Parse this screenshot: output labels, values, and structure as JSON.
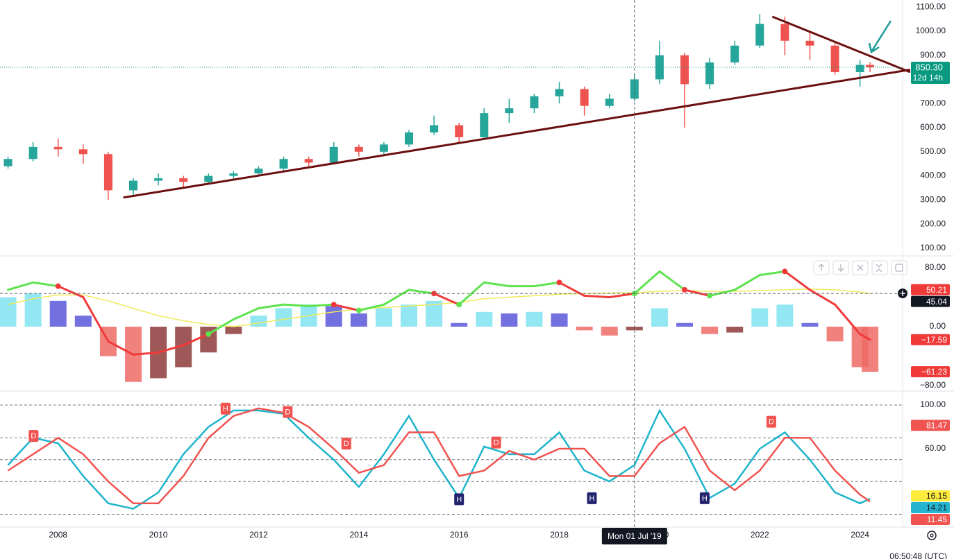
{
  "chart_data": [
    {
      "type": "candlestick",
      "x": [
        2007.0,
        2007.5,
        2008.0,
        2008.5,
        2009.0,
        2009.5,
        2010.0,
        2010.5,
        2011.0,
        2011.5,
        2012.0,
        2012.5,
        2013.0,
        2013.5,
        2014.0,
        2014.5,
        2015.0,
        2015.5,
        2016.0,
        2016.5,
        2017.0,
        2017.5,
        2018.0,
        2018.5,
        2019.0,
        2019.5,
        2020.0,
        2020.5,
        2021.0,
        2021.5,
        2022.0,
        2022.5,
        2023.0,
        2023.5,
        2024.0,
        2024.2
      ],
      "open": [
        440,
        470,
        520,
        510,
        490,
        340,
        380,
        390,
        375,
        400,
        410,
        430,
        470,
        455,
        520,
        500,
        530,
        580,
        610,
        560,
        660,
        680,
        730,
        760,
        690,
        720,
        800,
        900,
        780,
        870,
        940,
        1030,
        960,
        940,
        830,
        860
      ],
      "high": [
        480,
        540,
        555,
        530,
        500,
        390,
        410,
        400,
        410,
        420,
        440,
        480,
        480,
        540,
        530,
        540,
        590,
        650,
        620,
        680,
        720,
        740,
        790,
        770,
        740,
        820,
        960,
        910,
        890,
        960,
        1070,
        1060,
        1000,
        950,
        880,
        870
      ],
      "low": [
        430,
        460,
        480,
        450,
        300,
        320,
        360,
        350,
        370,
        380,
        400,
        420,
        440,
        450,
        480,
        490,
        520,
        570,
        540,
        550,
        620,
        660,
        700,
        650,
        680,
        710,
        780,
        600,
        760,
        860,
        930,
        900,
        880,
        820,
        770,
        830
      ],
      "close": [
        470,
        520,
        510,
        490,
        340,
        380,
        390,
        375,
        400,
        410,
        430,
        470,
        455,
        520,
        500,
        530,
        580,
        610,
        560,
        660,
        680,
        730,
        760,
        690,
        720,
        800,
        900,
        780,
        870,
        940,
        1030,
        960,
        940,
        830,
        860,
        850
      ],
      "up_color": "#26a69a",
      "down_color": "#ef5350",
      "xlim": [
        2006.84,
        2024.85
      ],
      "ylim": [
        71,
        1129
      ],
      "yticks": [
        {
          "value": 100,
          "label": "100.00"
        },
        {
          "value": 200,
          "label": "200.00"
        },
        {
          "value": 300,
          "label": "300.00"
        },
        {
          "value": 400,
          "label": "400.00"
        },
        {
          "value": 500,
          "label": "500.00"
        },
        {
          "value": 600,
          "label": "600.00"
        },
        {
          "value": 700,
          "label": "700.00"
        },
        {
          "value": 900,
          "label": "900.00"
        },
        {
          "value": 1000,
          "label": "1000.00"
        },
        {
          "value": 1100,
          "label": "1100.00"
        }
      ],
      "last_price": {
        "value": 850.3,
        "label": "850.30",
        "countdown": "12d 14h",
        "color": "#089981"
      },
      "trendline_color": "#6b0f0f",
      "trendlines": [
        {
          "x": [
            2009.3,
            2025.0
          ],
          "y": [
            310,
            840
          ]
        },
        {
          "x": [
            2022.25,
            2025.0
          ],
          "y": [
            1060,
            830
          ]
        }
      ]
    },
    {
      "type": "oscillator",
      "x": [
        2007.0,
        2007.5,
        2008.0,
        2008.5,
        2009.0,
        2009.5,
        2010.0,
        2010.5,
        2011.0,
        2011.5,
        2012.0,
        2012.5,
        2013.0,
        2013.5,
        2014.0,
        2014.5,
        2015.0,
        2015.5,
        2016.0,
        2016.5,
        2017.0,
        2017.5,
        2018.0,
        2018.5,
        2019.0,
        2019.5,
        2020.0,
        2020.5,
        2021.0,
        2021.5,
        2022.0,
        2022.5,
        2023.0,
        2023.5,
        2024.0,
        2024.2
      ],
      "xlim": [
        2006.84,
        2024.85
      ],
      "ylim": [
        -86.6,
        95.1
      ],
      "yticks": [
        {
          "value": 80,
          "label": "80.00"
        },
        {
          "value": 0,
          "label": "0.00"
        },
        {
          "value": -80,
          "label": "−80.00"
        }
      ],
      "histogram": [
        40,
        45,
        35,
        15,
        -40,
        -75,
        -70,
        -55,
        -35,
        -10,
        15,
        25,
        30,
        28,
        18,
        25,
        30,
        35,
        5,
        20,
        18,
        20,
        18,
        -5,
        -12,
        -5,
        25,
        5,
        -10,
        -8,
        25,
        30,
        5,
        -20,
        -55,
        -61.23
      ],
      "line": [
        50,
        60,
        55,
        40,
        -20,
        -38,
        -35,
        -25,
        -10,
        10,
        25,
        30,
        28,
        30,
        22,
        30,
        50,
        45,
        30,
        60,
        55,
        55,
        60,
        42,
        40,
        45,
        75,
        50,
        42,
        50,
        70,
        75,
        50,
        30,
        -10,
        -17.59
      ],
      "signal": [
        30,
        38,
        43,
        43,
        35,
        25,
        15,
        8,
        3,
        0,
        5,
        10,
        15,
        20,
        24,
        26,
        28,
        30,
        33,
        38,
        40,
        42,
        44,
        45,
        46,
        46,
        48,
        49,
        48,
        48,
        49,
        50,
        51,
        50,
        47,
        45.04
      ],
      "colors": {
        "up": "#5ee34f",
        "down": "#f03a3a",
        "signal": "#f2e95a",
        "hist_pos_rising": "#7fe3f0",
        "hist_pos_falling": "#5b57d9",
        "hist_neg_falling": "#ef6b66",
        "hist_neg_rising": "#8e3b3b"
      },
      "badges": [
        {
          "value": 50.21,
          "color": "#f03a3a",
          "text_color": "#ffffff"
        },
        {
          "value": 45.04,
          "color": "#131722",
          "text_color": "#ffffff"
        },
        {
          "value": -17.59,
          "label": "−17.59",
          "color": "#f03a3a",
          "text_color": "#ffffff"
        },
        {
          "value": -61.23,
          "label": "−61.23",
          "color": "#f03a3a",
          "text_color": "#ffffff"
        }
      ]
    },
    {
      "type": "stochastic",
      "x": [
        2007.0,
        2007.5,
        2008.0,
        2008.5,
        2009.0,
        2009.5,
        2010.0,
        2010.5,
        2011.0,
        2011.5,
        2012.0,
        2012.5,
        2013.0,
        2013.5,
        2014.0,
        2014.5,
        2015.0,
        2015.5,
        2016.0,
        2016.5,
        2017.0,
        2017.5,
        2018.0,
        2018.5,
        2019.0,
        2019.5,
        2020.0,
        2020.5,
        2021.0,
        2021.5,
        2022.0,
        2022.5,
        2023.0,
        2023.5,
        2024.0,
        2024.2
      ],
      "xlim": [
        2006.84,
        2024.85
      ],
      "ylim": [
        -10.5,
        112.1
      ],
      "xticks": [
        2008,
        2010,
        2012,
        2014,
        2016,
        2018,
        2020,
        2022,
        2024
      ],
      "yticks": [
        {
          "value": 100,
          "label": "100.00"
        },
        {
          "value": 60,
          "label": "60.00"
        }
      ],
      "levels": [
        100,
        70,
        50,
        30,
        0
      ],
      "series": [
        {
          "color": "#1eb4cc",
          "values": [
            45,
            70,
            65,
            35,
            10,
            5,
            20,
            55,
            80,
            95,
            95,
            92,
            70,
            50,
            25,
            55,
            90,
            50,
            15,
            62,
            55,
            55,
            75,
            40,
            30,
            45,
            95,
            60,
            15,
            28,
            60,
            75,
            50,
            20,
            10,
            14.21
          ]
        },
        {
          "color": "#f05350",
          "values": [
            40,
            55,
            70,
            55,
            30,
            10,
            10,
            35,
            70,
            90,
            97,
            93,
            80,
            60,
            38,
            45,
            75,
            75,
            35,
            40,
            58,
            50,
            60,
            60,
            35,
            35,
            65,
            80,
            40,
            22,
            40,
            70,
            70,
            40,
            18,
            11.45
          ]
        }
      ],
      "markers": [
        {
          "x": 2007.51,
          "y": 72,
          "label": "D",
          "color": "#f05350"
        },
        {
          "x": 2011.34,
          "y": 97,
          "label": "H",
          "color": "#f05350"
        },
        {
          "x": 2012.58,
          "y": 94,
          "label": "D",
          "color": "#f05350"
        },
        {
          "x": 2013.75,
          "y": 65,
          "label": "D",
          "color": "#f05350"
        },
        {
          "x": 2016.0,
          "y": 14,
          "label": "H",
          "color": "#23236e"
        },
        {
          "x": 2016.74,
          "y": 66,
          "label": "D",
          "color": "#f05350"
        },
        {
          "x": 2018.65,
          "y": 15,
          "label": "H",
          "color": "#23236e"
        },
        {
          "x": 2020.9,
          "y": 15,
          "label": "H",
          "color": "#23236e"
        },
        {
          "x": 2022.23,
          "y": 85,
          "label": "D",
          "color": "#f05350"
        }
      ],
      "badges": [
        {
          "value": 81.47,
          "color": "#f05350",
          "text_color": "#ffffff"
        },
        {
          "value": 16.15,
          "color": "#ffeb3b",
          "text_color": "#131722"
        },
        {
          "value": 14.21,
          "color": "#26b5d0",
          "text_color": "#131722"
        },
        {
          "value": 11.45,
          "color": "#f05350",
          "text_color": "#ffffff"
        }
      ]
    }
  ],
  "crosshair": {
    "x": 2019.5,
    "label": "Mon 01 Jul '19"
  },
  "clock": "06:50:48 (UTC)"
}
